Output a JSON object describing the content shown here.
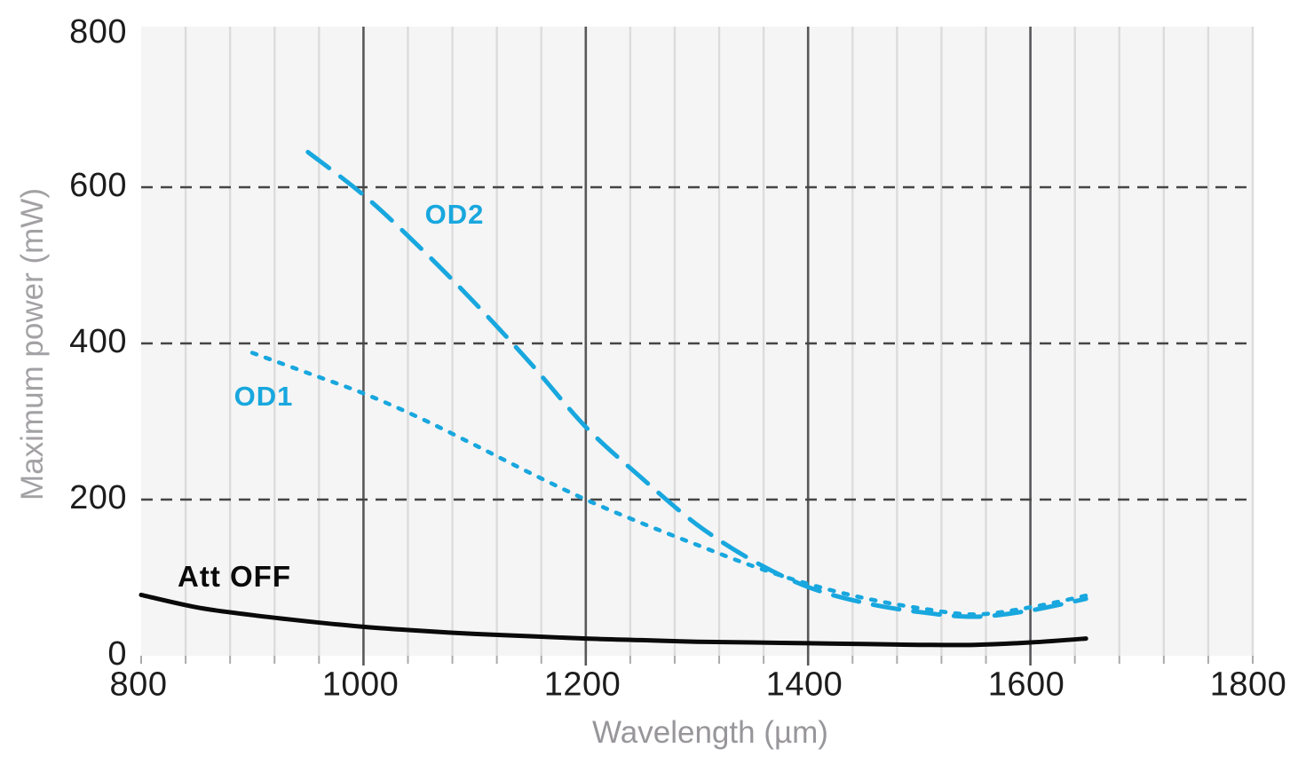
{
  "chart_data": {
    "type": "line",
    "title": "",
    "xlabel": "Wavelength (µm)",
    "ylabel": "Maximum power (mW)",
    "xlim": [
      800,
      1800
    ],
    "ylim": [
      0,
      800
    ],
    "grid": {
      "vertical_minor_step": 40,
      "vertical_major_at": [
        1000,
        1200,
        1400,
        1600
      ],
      "horizontal_dashed_at": [
        200,
        400,
        600
      ],
      "legend_position": "none (inline curve labels)"
    },
    "x_ticks": {
      "values": [
        800,
        1000,
        1200,
        1400,
        1600,
        1800
      ],
      "labels": [
        "800",
        "1000",
        "1200",
        "1400",
        "1600",
        "1800"
      ]
    },
    "y_ticks": {
      "values": [
        0,
        200,
        400,
        600,
        800
      ],
      "labels": [
        "0",
        "200",
        "400",
        "600",
        "800"
      ]
    },
    "colors": {
      "accent_cyan": "#18A7DE",
      "curve_black": "#0A0A0A",
      "plot_background": "#F5F5F5",
      "grid_minor": "#DCDCDC",
      "grid_major": "#58585A",
      "grid_dashed": "#454545",
      "tick_minor": "#ABABAB",
      "tick_text": "#1C1C1C",
      "axis_title_text": "#98969A"
    },
    "series": [
      {
        "name": "Att OFF",
        "style": "solid",
        "color_key": "curve_black",
        "x": [
          800,
          850,
          900,
          950,
          1000,
          1050,
          1100,
          1150,
          1200,
          1250,
          1300,
          1350,
          1400,
          1450,
          1500,
          1550,
          1600,
          1650
        ],
        "y": [
          78,
          62,
          52,
          44,
          37,
          32,
          28,
          25,
          22,
          20,
          18,
          17,
          16,
          15,
          14,
          14,
          17,
          22
        ]
      },
      {
        "name": "OD1",
        "style": "dotted",
        "color_key": "accent_cyan",
        "x": [
          900,
          950,
          1000,
          1050,
          1100,
          1150,
          1200,
          1250,
          1300,
          1350,
          1400,
          1450,
          1500,
          1550,
          1600,
          1650
        ],
        "y": [
          388,
          362,
          336,
          305,
          270,
          234,
          200,
          170,
          142,
          115,
          92,
          74,
          61,
          53,
          62,
          77
        ]
      },
      {
        "name": "OD2",
        "style": "long-dash",
        "color_key": "accent_cyan",
        "x": [
          950,
          1000,
          1050,
          1100,
          1150,
          1200,
          1250,
          1300,
          1350,
          1400,
          1450,
          1500,
          1550,
          1600,
          1650
        ],
        "y": [
          645,
          590,
          524,
          452,
          375,
          293,
          228,
          168,
          122,
          88,
          68,
          56,
          50,
          58,
          73
        ]
      }
    ]
  }
}
